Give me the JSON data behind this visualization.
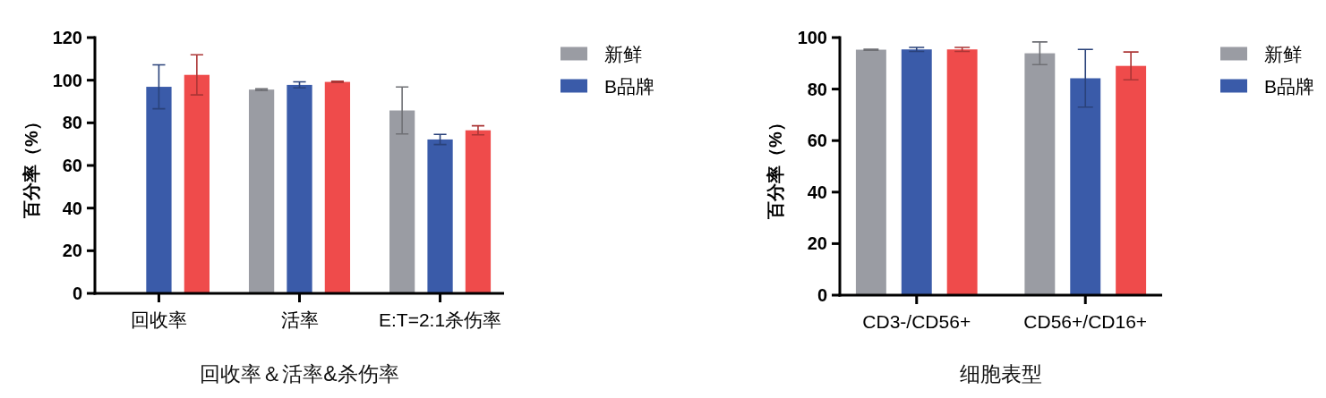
{
  "chart_data": [
    {
      "type": "bar",
      "categories": [
        "回收率",
        "活率",
        "E:T=2:1杀伤率"
      ],
      "xlabel": "回收率＆活率&杀伤率",
      "ylabel": "百分率（%）",
      "ylim": [
        0,
        120
      ],
      "yticks": [
        0,
        20,
        40,
        60,
        80,
        100,
        120
      ],
      "legend": "right",
      "series": [
        {
          "name": "新鲜",
          "color": "#9a9ca3",
          "values": [
            null,
            95.6,
            85.8
          ],
          "errors": [
            null,
            0.4,
            11
          ]
        },
        {
          "name": "B品牌",
          "color": "#3a5ba9",
          "values": [
            96.9,
            97.8,
            72.2
          ],
          "errors": [
            10.3,
            1.4,
            2.4
          ]
        },
        {
          "color": "#ef4b4b",
          "values": [
            102.5,
            99.2,
            76.5
          ],
          "errors": [
            9.4,
            0.3,
            2.1
          ]
        }
      ]
    },
    {
      "type": "bar",
      "categories": [
        "CD3-/CD56+",
        "CD56+/CD16+"
      ],
      "xlabel": "细胞表型",
      "ylabel": "百分率（%）",
      "ylim": [
        0,
        100
      ],
      "yticks": [
        0,
        20,
        40,
        60,
        80,
        100
      ],
      "legend": "right",
      "series": [
        {
          "name": "新鲜",
          "color": "#9a9ca3",
          "values": [
            95.3,
            93.9
          ],
          "errors": [
            0.2,
            4.4
          ]
        },
        {
          "name": "B品牌",
          "color": "#3a5ba9",
          "values": [
            95.4,
            84.2
          ],
          "errors": [
            0.8,
            11.2
          ]
        },
        {
          "color": "#ef4b4b",
          "values": [
            95.4,
            89.0
          ],
          "errors": [
            0.8,
            5.4
          ]
        }
      ]
    }
  ]
}
